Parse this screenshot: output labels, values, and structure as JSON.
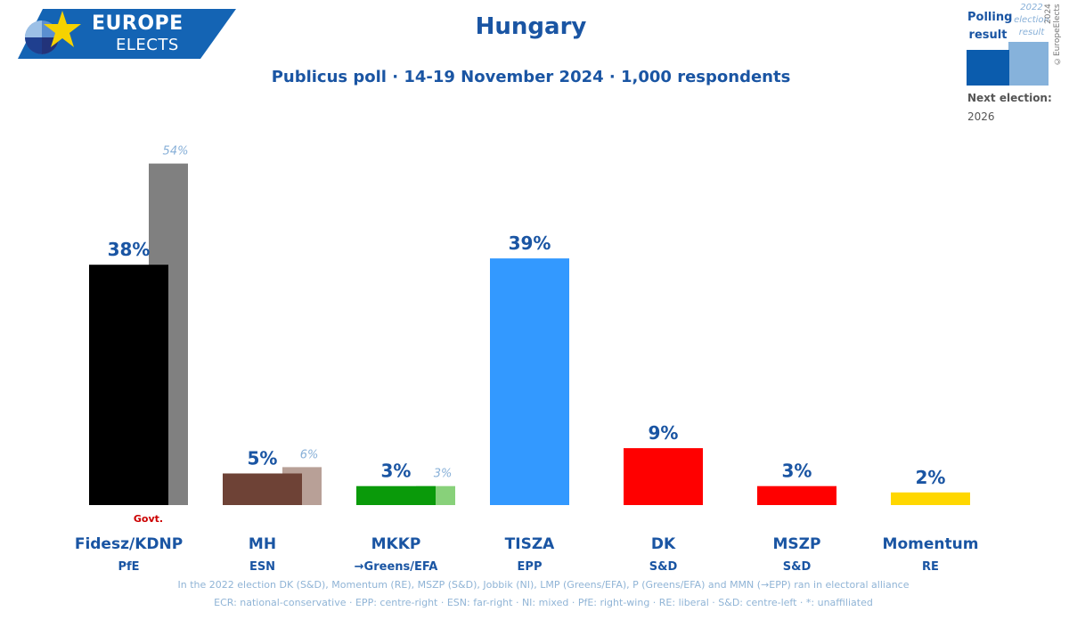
{
  "header": {
    "logo_line1": "EUROPE",
    "logo_line2": "ELECTS",
    "title": "Hungary",
    "subtitle": "Publicus poll · 14-19 November 2024 · 1,000 respondents"
  },
  "legend": {
    "polling_label": "Polling result",
    "previous_label": "2022 election result",
    "copyright": "2024 ©EuropeElects",
    "next_election_label": "Next election:",
    "next_election_year": "2026"
  },
  "colors": {
    "accent": "#1a55a3",
    "previous_label": "#88b0d8",
    "footnote": "#90b4d6",
    "govt": "#cc0000"
  },
  "chart_data": {
    "type": "bar",
    "title": "Hungary",
    "subtitle": "Publicus poll · 14-19 November 2024 · 1,000 respondents",
    "categories": [
      "Fidesz/KDNP",
      "MH",
      "MKKP",
      "TISZA",
      "DK",
      "MSZP",
      "Momentum"
    ],
    "groups": [
      "PfE",
      "ESN",
      "→Greens/EFA",
      "EPP",
      "S&D",
      "S&D",
      "RE"
    ],
    "series": [
      {
        "name": "Polling result",
        "values": [
          38,
          5,
          3,
          39,
          9,
          3,
          2
        ],
        "labels": [
          "38%",
          "5%",
          "3%",
          "39%",
          "9%",
          "3%",
          "2%"
        ],
        "colors": [
          "#000000",
          "#6e4236",
          "#0a9a0a",
          "#3399ff",
          "#ff0000",
          "#ff0000",
          "#ffd700"
        ]
      },
      {
        "name": "2022 election result",
        "values": [
          54,
          6,
          3,
          null,
          null,
          null,
          null
        ],
        "labels": [
          "54%",
          "6%",
          "3%",
          "",
          "",
          "",
          ""
        ],
        "colors": [
          "#808080",
          "#b8a097",
          "#88d17a",
          "",
          "",
          "",
          ""
        ]
      }
    ],
    "annotations": [
      {
        "category": "Fidesz/KDNP",
        "text": "Govt."
      }
    ],
    "ylim": [
      0,
      60
    ],
    "footnote_1": "In the 2022 election DK (S&D), Momentum (RE), MSZP (S&D), Jobbik (NI), LMP (Greens/EFA), P (Greens/EFA) and MMN (→EPP) ran in electoral alliance",
    "footnote_2": "ECR: national-conservative · EPP: centre-right · ESN: far-right · NI: mixed · PfE: right-wing · RE: liberal · S&D: centre-left · *: unaffiliated"
  }
}
